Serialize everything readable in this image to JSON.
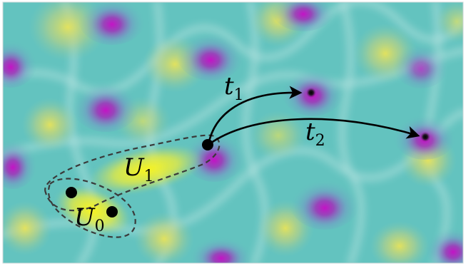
{
  "labels": {
    "U0": {
      "main": "U",
      "sub": "0"
    },
    "U1": {
      "main": "U",
      "sub": "1"
    },
    "t1": {
      "main": "t",
      "sub": "1"
    },
    "t2": {
      "main": "t",
      "sub": "2"
    }
  },
  "colors": {
    "surface_base": "#63c3bf",
    "peak_yellow": "#e5e25a",
    "basin_magenta": "#b01fb8",
    "ridge_highlight": "#dff3f0",
    "strong_yellow": "#f3f02c",
    "outline": "#3a3a3a",
    "point": "#000000"
  }
}
